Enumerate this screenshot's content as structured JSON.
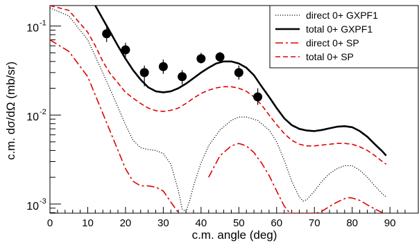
{
  "chart_data": {
    "type": "line",
    "title": "",
    "xlabel": "c.m. angle (deg)",
    "ylabel": "c.m. dσ/dΩ (mb/sr)",
    "xlim": [
      0,
      97.5
    ],
    "ylim": [
      0.00079,
      0.17
    ],
    "yscale": "log",
    "grid": false,
    "legend_position": "top-right",
    "x_ticks": [
      0,
      10,
      20,
      30,
      40,
      50,
      60,
      70,
      80,
      90
    ],
    "x_tick_labels": [
      "0",
      "10",
      "20",
      "30",
      "40",
      "50",
      "60",
      "70",
      "80",
      "90"
    ],
    "y_ticks": [
      0.001,
      0.01,
      0.1
    ],
    "y_tick_labels": [
      {
        "base": "10",
        "exp": "-3"
      },
      {
        "base": "10",
        "exp": "-2"
      },
      {
        "base": "10",
        "exp": "-1"
      }
    ],
    "series": [
      {
        "name": "direct 0+ GXPF1",
        "color": "#000000",
        "dash": "dotted",
        "x": [
          0,
          5,
          10,
          15,
          20,
          22,
          24,
          26,
          28,
          30,
          32,
          34,
          35,
          36,
          37,
          38,
          40,
          42,
          45,
          48,
          50,
          52,
          55,
          58,
          60,
          62,
          64,
          66,
          67,
          68,
          70,
          72,
          74,
          76,
          78,
          80,
          82,
          84,
          86,
          88,
          89
        ],
        "y": [
          0.16,
          0.13,
          0.07,
          0.024,
          0.0078,
          0.0052,
          0.0043,
          0.0041,
          0.004,
          0.0037,
          0.0028,
          0.0014,
          0.00088,
          0.00082,
          0.0011,
          0.0016,
          0.0029,
          0.0045,
          0.0068,
          0.0087,
          0.0095,
          0.0095,
          0.0087,
          0.0068,
          0.005,
          0.0031,
          0.0018,
          0.0012,
          0.00108,
          0.00112,
          0.0014,
          0.0018,
          0.0022,
          0.0025,
          0.0027,
          0.0027,
          0.0024,
          0.002,
          0.0016,
          0.0013,
          0.0012
        ]
      },
      {
        "name": "total 0+ GXPF1",
        "color": "#000000",
        "dash": "solid",
        "x": [
          12,
          14,
          16,
          18,
          20,
          22,
          24,
          26,
          28,
          30,
          32,
          34,
          36,
          38,
          40,
          42,
          44,
          46,
          48,
          50,
          52,
          54,
          56,
          58,
          60,
          62,
          64,
          66,
          68,
          70,
          72,
          74,
          76,
          78,
          80,
          82,
          84,
          86,
          88,
          89
        ],
        "y": [
          0.17,
          0.12,
          0.085,
          0.06,
          0.043,
          0.032,
          0.025,
          0.0205,
          0.0185,
          0.018,
          0.0185,
          0.02,
          0.0225,
          0.026,
          0.03,
          0.034,
          0.038,
          0.04,
          0.04,
          0.038,
          0.034,
          0.028,
          0.021,
          0.016,
          0.012,
          0.0092,
          0.0077,
          0.007,
          0.0067,
          0.0066,
          0.0068,
          0.0071,
          0.0074,
          0.0075,
          0.0073,
          0.0066,
          0.0057,
          0.0047,
          0.0039,
          0.0035
        ]
      },
      {
        "name": "direct 0+ SP",
        "color": "#e00000",
        "dash": "dashdot",
        "x": [
          0,
          5,
          10,
          15,
          20,
          22,
          24,
          26,
          28,
          30,
          32,
          34,
          35,
          36,
          37,
          40,
          42,
          45,
          48,
          50,
          52,
          54,
          55,
          56,
          58,
          60,
          62,
          63.5,
          70.5,
          72,
          74,
          76,
          78,
          79,
          80,
          82,
          84,
          86,
          88,
          89
        ],
        "y": [
          0.07,
          0.052,
          0.027,
          0.0082,
          0.0025,
          0.0018,
          0.0016,
          0.0016,
          0.00155,
          0.0014,
          0.00105,
          0.0008,
          null,
          null,
          null,
          null,
          0.002,
          0.0035,
          0.0045,
          0.0048,
          0.0045,
          0.0038,
          0.0033,
          0.0029,
          0.0021,
          0.0014,
          0.00095,
          0.00079,
          0.00079,
          0.00083,
          0.00094,
          0.00105,
          0.00115,
          0.00118,
          0.00117,
          0.0011,
          0.00098,
          0.00088,
          0.0008,
          0.00079
        ]
      },
      {
        "name": "total 0+ SP",
        "color": "#e00000",
        "dash": "dashed",
        "x": [
          0,
          5,
          10,
          12,
          14,
          16,
          18,
          20,
          22,
          24,
          26,
          28,
          30,
          32,
          34,
          36,
          38,
          40,
          42,
          44,
          46,
          48,
          50,
          52,
          54,
          56,
          58,
          60,
          62,
          64,
          66,
          68,
          70,
          72,
          74,
          76,
          78,
          80,
          82,
          84,
          86,
          88,
          89
        ],
        "y": [
          0.17,
          0.15,
          0.085,
          0.06,
          0.04,
          0.029,
          0.023,
          0.018,
          0.0155,
          0.0135,
          0.012,
          0.0112,
          0.011,
          0.0113,
          0.012,
          0.0135,
          0.0155,
          0.0175,
          0.019,
          0.0202,
          0.0208,
          0.0208,
          0.02,
          0.0185,
          0.016,
          0.013,
          0.01,
          0.0078,
          0.0062,
          0.0052,
          0.0047,
          0.0045,
          0.0045,
          0.0046,
          0.0047,
          0.0048,
          0.0048,
          0.0047,
          0.0044,
          0.004,
          0.0035,
          0.003,
          0.0028
        ]
      },
      {
        "name": "",
        "type": "scatter",
        "color": "#000000",
        "x": [
          15,
          20,
          25,
          30,
          35,
          40,
          45,
          50,
          55
        ],
        "y": [
          0.082,
          0.054,
          0.03,
          0.035,
          0.027,
          0.043,
          0.045,
          0.03,
          0.016
        ],
        "y_err_low": [
          0.016,
          0.009,
          0.009,
          0.006,
          0.005,
          0.005,
          0.005,
          0.005,
          0.003
        ],
        "y_err_high": [
          0.022,
          0.011,
          0.006,
          0.007,
          0.005,
          0.007,
          0.006,
          0.006,
          0.004
        ]
      }
    ]
  }
}
